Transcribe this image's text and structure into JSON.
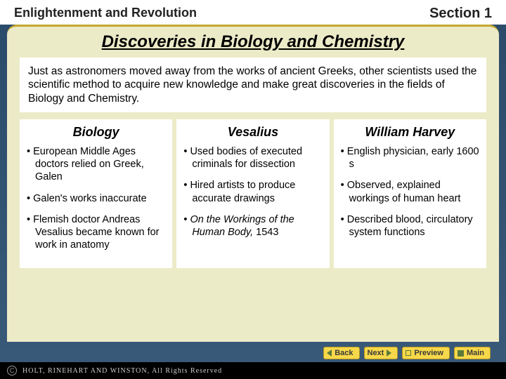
{
  "header": {
    "left": "Enlightenment and Revolution",
    "right": "Section 1"
  },
  "title": "Discoveries in Biology and Chemistry",
  "intro": "Just as astronomers moved away from the works of ancient Greeks, other scientists used the scientific method to acquire new knowledge and make great discoveries in the fields of Biology and Chemistry.",
  "columns": [
    {
      "heading": "Biology",
      "items": [
        "European Middle Ages doctors relied on Greek, Galen",
        "Galen's works inaccurate",
        "Flemish doctor Andreas Vesalius became known for work in anatomy"
      ]
    },
    {
      "heading": "Vesalius",
      "items": [
        "Used bodies of executed criminals for dissection",
        "Hired artists to produce accurate drawings",
        "<span class=\"em\">On the Workings of the Human Body,</span> 1543"
      ]
    },
    {
      "heading": "William Harvey",
      "items": [
        "English physician, early 1600 s",
        "Observed, explained workings of human heart",
        "Described blood, circulatory system functions"
      ]
    }
  ],
  "nav": {
    "back": "Back",
    "next": "Next",
    "preview": "Preview",
    "main": "Main"
  },
  "footer": {
    "publisher": "HOLT, RINEHART AND WINSTON, All Rights Reserved"
  },
  "colors": {
    "frame_bg": "#ecebc8",
    "btn_bg": "#f7d84a"
  }
}
